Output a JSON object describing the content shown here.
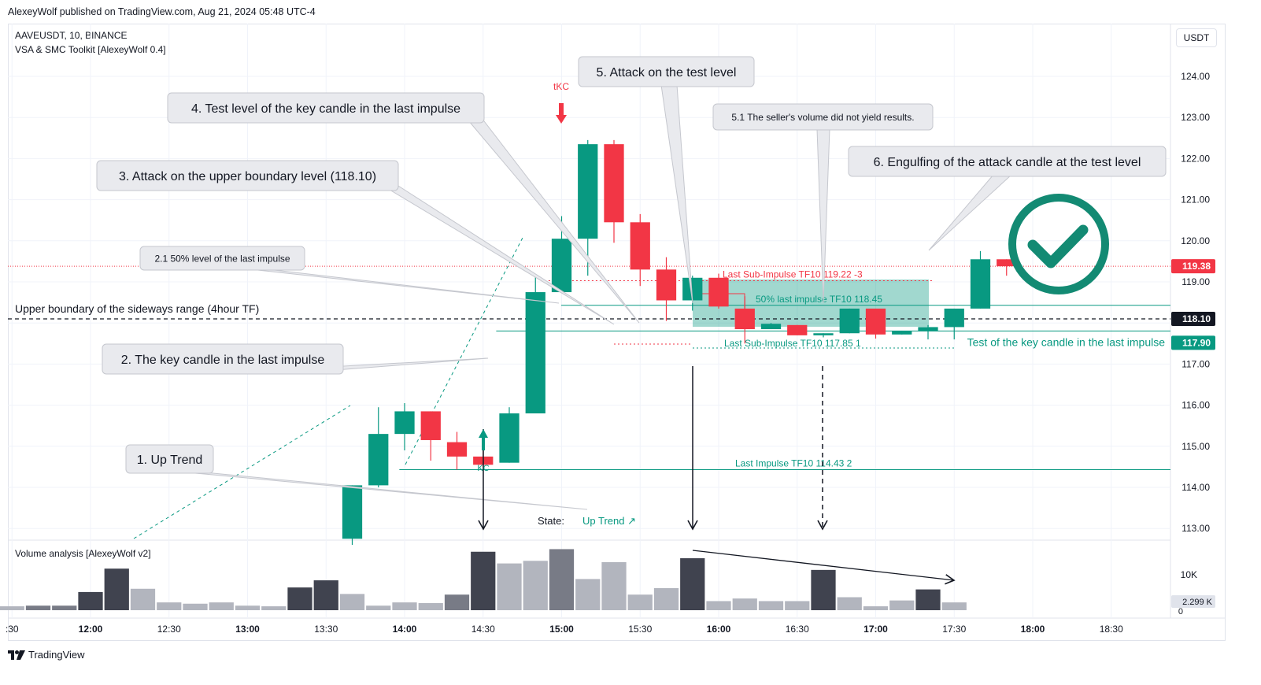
{
  "banner": "AlexeyWolf published on TradingView.com, Aug 21, 2024 05:48 UTC-4",
  "symbol_line": "AAVEUSDT, 10, BINANCE",
  "indicator_line": "VSA & SMC Toolkit [AlexeyWolf 0.4]",
  "volume_title": "Volume analysis [AlexeyWolf v2]",
  "currency_button": "USDT",
  "brand": "TradingView",
  "state_label": "State:",
  "state_value": "Up Trend ↗",
  "callouts": {
    "c1": "1. Up Trend",
    "c2": "2. The key candle in the last impulse",
    "c21": "2.1 50% level of the last impulse",
    "c3": "3. Attack on the upper boundary level (118.10)",
    "c4": "4. Test level of the key candle in the last impulse",
    "c5": "5. Attack on the test level",
    "c51": "5.1 The seller's volume did not yield results.",
    "c6": "6. Engulfing of the attack candle at the test level"
  },
  "level_labels": {
    "upper_boundary": "Upper boundary of the sideways range (4hour TF)",
    "test_key_candle": "Test of the key candle in the last impulse",
    "last_sub_impulse_top": "Last Sub-Impulse TF10 119.22 -3",
    "last_sub_impulse_bottom": "Last Sub-Impulse TF10 117.85 1",
    "fifty_pct": "50% last impulse TF10 118.45",
    "last_impulse": "Last Impulse TF10 114.43 2",
    "kc": "KC",
    "tkc": "tKC"
  },
  "price_tags": {
    "current": "119.38",
    "boundary": "118.10",
    "test": "117.90",
    "volume": "2.299 K"
  },
  "colors": {
    "bull": "#089981",
    "bear": "#f23645",
    "vol_dark": "#40434f",
    "vol_mid": "#787b86",
    "vol_light": "#b2b5be",
    "callout_bg": "#e9eaee",
    "callout_border": "#c5c7ce",
    "check": "#138a73"
  },
  "chart_data": {
    "type": "candlestick",
    "symbol": "AAVEUSDT",
    "timeframe": "10",
    "exchange": "BINANCE",
    "ylim": [
      112.6,
      124.7
    ],
    "y_ticks": [
      "124.00",
      "123.00",
      "122.00",
      "121.00",
      "120.00",
      "119.00",
      "118.00",
      "117.00",
      "116.00",
      "115.00",
      "114.00",
      "113.00"
    ],
    "x_ticks": [
      ":30",
      "12:00",
      "12:30",
      "13:00",
      "13:30",
      "14:00",
      "14:30",
      "15:00",
      "15:30",
      "16:00",
      "16:30",
      "17:00",
      "17:30",
      "18:00",
      "18:30"
    ],
    "time_start": "13:40",
    "bar_minutes": 10,
    "candles": [
      {
        "o": 112.75,
        "h": 114.05,
        "l": 112.6,
        "c": 114.05
      },
      {
        "o": 114.05,
        "h": 115.95,
        "l": 114.0,
        "c": 115.3
      },
      {
        "o": 115.3,
        "h": 116.05,
        "l": 114.9,
        "c": 115.85
      },
      {
        "o": 115.85,
        "h": 115.85,
        "l": 114.65,
        "c": 115.15
      },
      {
        "o": 115.1,
        "h": 115.35,
        "l": 114.43,
        "c": 114.75
      },
      {
        "o": 114.75,
        "h": 115.4,
        "l": 114.5,
        "c": 114.55
      },
      {
        "o": 114.6,
        "h": 115.95,
        "l": 114.6,
        "c": 115.8
      },
      {
        "o": 115.8,
        "h": 119.15,
        "l": 115.8,
        "c": 118.75
      },
      {
        "o": 118.75,
        "h": 120.6,
        "l": 118.75,
        "c": 120.05
      },
      {
        "o": 120.05,
        "h": 122.45,
        "l": 119.15,
        "c": 122.35
      },
      {
        "o": 122.35,
        "h": 122.45,
        "l": 119.95,
        "c": 120.45
      },
      {
        "o": 120.45,
        "h": 120.65,
        "l": 118.9,
        "c": 119.3
      },
      {
        "o": 119.3,
        "h": 119.6,
        "l": 118.05,
        "c": 118.55
      },
      {
        "o": 118.55,
        "h": 119.15,
        "l": 118.3,
        "c": 119.1
      },
      {
        "o": 119.1,
        "h": 119.2,
        "l": 118.35,
        "c": 118.4
      },
      {
        "o": 118.35,
        "h": 118.65,
        "l": 117.5,
        "c": 117.85
      },
      {
        "o": 117.85,
        "h": 118.0,
        "l": 117.85,
        "c": 117.98
      },
      {
        "o": 117.95,
        "h": 117.95,
        "l": 117.7,
        "c": 117.7
      },
      {
        "o": 117.7,
        "h": 117.75,
        "l": 117.65,
        "c": 117.75
      },
      {
        "o": 117.75,
        "h": 118.35,
        "l": 117.75,
        "c": 118.35
      },
      {
        "o": 118.35,
        "h": 118.35,
        "l": 117.62,
        "c": 117.72
      },
      {
        "o": 117.72,
        "h": 117.8,
        "l": 117.72,
        "c": 117.8
      },
      {
        "o": 117.8,
        "h": 117.95,
        "l": 117.6,
        "c": 117.9
      },
      {
        "o": 117.9,
        "h": 118.35,
        "l": 117.6,
        "c": 118.35
      },
      {
        "o": 118.35,
        "h": 119.75,
        "l": 118.35,
        "c": 119.55
      },
      {
        "o": 119.55,
        "h": 119.55,
        "l": 119.15,
        "c": 119.38
      }
    ],
    "volume": {
      "time_start": "11:30",
      "values": [
        0.3,
        0.35,
        0.35,
        1.4,
        3.2,
        1.65,
        0.6,
        0.5,
        0.6,
        0.35,
        0.3,
        1.75,
        2.3,
        1.25,
        0.35,
        0.6,
        0.55,
        1.2,
        4.5,
        3.6,
        3.8,
        4.7,
        2.4,
        3.7,
        1.2,
        1.7,
        4.0,
        0.7,
        0.9,
        0.7,
        0.7,
        3.1,
        1.0,
        0.3,
        0.75,
        1.6,
        0.6
      ],
      "shades": [
        "l",
        "m",
        "m",
        "d",
        "d",
        "l",
        "l",
        "l",
        "l",
        "l",
        "l",
        "d",
        "d",
        "l",
        "l",
        "l",
        "l",
        "m",
        "d",
        "l",
        "l",
        "m",
        "l",
        "l",
        "l",
        "l",
        "d",
        "l",
        "l",
        "l",
        "l",
        "d",
        "l",
        "l",
        "l",
        "d",
        "l"
      ],
      "tick_label": "10K",
      "zero_label": "0"
    },
    "levels": {
      "upper_boundary": 118.1,
      "test_key_candle": 117.9,
      "last_sub_impulse_top": 119.22,
      "last_sub_impulse_bottom": 117.85,
      "fifty_pct": 118.45,
      "last_impulse": 114.43,
      "current_price": 119.38
    }
  }
}
